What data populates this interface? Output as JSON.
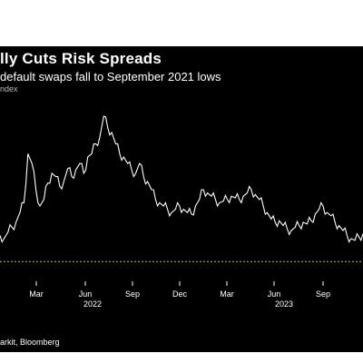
{
  "header": {
    "title": "lly Cuts Risk Spreads",
    "subtitle": "default swaps fall to September 2021 lows",
    "legend_text": "ndex"
  },
  "footer": {
    "source": "arkit, Bloomberg"
  },
  "colors": {
    "background": "#000000",
    "line": "#ffffff",
    "reference_line": "#d9c46a",
    "text": "#ffffff"
  },
  "chart_data": {
    "type": "line",
    "title": "lly Cuts Risk Spreads",
    "subtitle": "default swaps fall to September 2021 lows",
    "xlabel": "",
    "ylabel": "",
    "x_tick_labels": [
      "Mar",
      "Jun",
      "Sep",
      "Dec",
      "Mar",
      "Jun",
      "Sep"
    ],
    "year_labels": [
      "2022",
      "2023"
    ],
    "reference_line": {
      "style": "dotted",
      "level": 0.06
    },
    "grid": false,
    "series": [
      {
        "values": [
          0.22,
          0.2,
          0.24,
          0.27,
          0.3,
          0.36,
          0.42,
          0.72,
          0.66,
          0.5,
          0.4,
          0.44,
          0.54,
          0.6,
          0.58,
          0.52,
          0.55,
          0.63,
          0.58,
          0.62,
          0.66,
          0.6,
          0.7,
          0.72,
          0.78,
          0.82,
          0.95,
          0.88,
          0.85,
          0.78,
          0.72,
          0.7,
          0.66,
          0.62,
          0.6,
          0.66,
          0.58,
          0.55,
          0.5,
          0.44,
          0.42,
          0.4,
          0.38,
          0.36,
          0.38,
          0.4,
          0.38,
          0.36,
          0.35,
          0.4,
          0.44,
          0.5,
          0.48,
          0.46,
          0.44,
          0.42,
          0.43,
          0.44,
          0.46,
          0.45,
          0.44,
          0.46,
          0.48,
          0.5,
          0.47,
          0.44,
          0.4,
          0.36,
          0.32,
          0.3,
          0.31,
          0.28,
          0.26,
          0.25,
          0.27,
          0.28,
          0.3,
          0.29,
          0.31,
          0.35,
          0.38,
          0.4,
          0.36,
          0.34,
          0.3,
          0.28,
          0.25,
          0.22,
          0.2,
          0.19,
          0.21,
          0.23
        ]
      }
    ]
  }
}
